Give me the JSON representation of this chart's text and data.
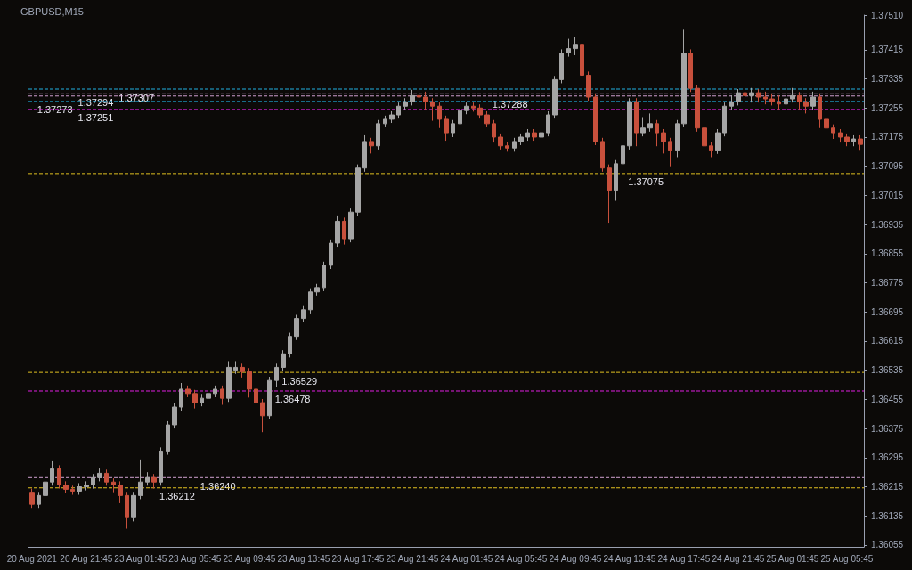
{
  "chart_data": {
    "type": "candlestick",
    "title": "GBPUSD,M15",
    "categories": [
      "20 Aug 2021",
      null,
      null,
      null,
      null,
      null,
      null,
      null,
      "20 Aug 21:45",
      null,
      null,
      null,
      null,
      null,
      null,
      null,
      "23 Aug 01:45",
      null,
      null,
      null,
      null,
      null,
      null,
      null,
      "23 Aug 05:45",
      null,
      null,
      null,
      null,
      null,
      null,
      null,
      "23 Aug 09:45",
      null,
      null,
      null,
      null,
      null,
      null,
      null,
      "23 Aug 13:45",
      null,
      null,
      null,
      null,
      null,
      null,
      null,
      "23 Aug 17:45",
      null,
      null,
      null,
      null,
      null,
      null,
      null,
      "23 Aug 21:45",
      null,
      null,
      null,
      null,
      null,
      null,
      null,
      "24 Aug 01:45",
      null,
      null,
      null,
      null,
      null,
      null,
      null,
      "24 Aug 05:45",
      null,
      null,
      null,
      null,
      null,
      null,
      null,
      "24 Aug 09:45",
      null,
      null,
      null,
      null,
      null,
      null,
      null,
      "24 Aug 13:45",
      null,
      null,
      null,
      null,
      null,
      null,
      null,
      "24 Aug 17:45",
      null,
      null,
      null,
      null,
      null,
      null,
      null,
      "24 Aug 21:45",
      null,
      null,
      null,
      null,
      null,
      null,
      null,
      "25 Aug 01:45",
      null,
      null,
      null,
      null,
      null,
      null,
      null,
      "25 Aug 05:45",
      null,
      null
    ],
    "colors": [
      "#c8503c",
      "#a5a5a5",
      "#a5a5a5",
      "#a5a5a5",
      "#c8503c",
      "#c8503c",
      "#c8503c",
      "#a5a5a5",
      "#a5a5a5",
      "#a5a5a5",
      "#a5a5a5",
      "#c8503c",
      "#c8503c",
      "#c8503c",
      "#c8503c",
      "#a5a5a5",
      "#a5a5a5",
      "#a5a5a5",
      "#c8503c",
      "#a5a5a5",
      "#a5a5a5",
      "#a5a5a5",
      "#a5a5a5",
      "#c8503c",
      "#c8503c",
      "#a5a5a5",
      "#a5a5a5",
      "#a5a5a5",
      "#c8503c",
      "#a5a5a5",
      "#a5a5a5",
      "#c8503c",
      "#c8503c",
      "#c8503c",
      "#c8503c",
      "#a5a5a5",
      "#a5a5a5",
      "#a5a5a5",
      "#a5a5a5",
      "#a5a5a5",
      "#a5a5a5",
      "#a5a5a5",
      "#a5a5a5",
      "#a5a5a5",
      "#a5a5a5",
      "#a5a5a5",
      "#c8503c",
      "#a5a5a5",
      "#a5a5a5",
      "#a5a5a5",
      "#c8503c",
      "#a5a5a5",
      "#a5a5a5",
      "#a5a5a5",
      "#a5a5a5",
      "#a5a5a5",
      "#a5a5a5",
      "#c8503c",
      "#c8503c",
      "#c8503c",
      "#c8503c",
      "#c8503c",
      "#a5a5a5",
      "#a5a5a5",
      "#a5a5a5",
      "#c8503c",
      "#c8503c",
      "#c8503c",
      "#c8503c",
      "#c8503c",
      "#c8503c",
      "#a5a5a5",
      "#a5a5a5",
      "#a5a5a5",
      "#c8503c",
      "#a5a5a5",
      "#a5a5a5",
      "#a5a5a5",
      "#a5a5a5",
      "#a5a5a5",
      "#a5a5a5",
      "#c8503c",
      "#c8503c",
      "#c8503c",
      "#c8503c",
      "#c8503c",
      "#a5a5a5",
      "#a5a5a5",
      "#a5a5a5",
      "#c8503c",
      "#a5a5a5",
      "#a5a5a5",
      "#c8503c",
      "#c8503c",
      "#c8503c",
      "#a5a5a5",
      "#a5a5a5",
      "#c8503c",
      "#c8503c",
      "#c8503c",
      "#c8503c",
      "#a5a5a5",
      "#a5a5a5",
      "#a5a5a5",
      "#a5a5a5",
      "#c8503c",
      "#a5a5a5",
      "#c8503c",
      "#c8503c",
      "#c8503c",
      "#c8503c",
      "#a5a5a5",
      "#a5a5a5",
      "#c8503c",
      "#c8503c",
      "#a5a5a5",
      "#c8503c",
      "#c8503c",
      "#c8503c",
      "#c8503c",
      "#c8503c",
      "#a5a5a5",
      "#c8503c"
    ],
    "ohlc": [
      [
        1.362,
        1.3621,
        1.36157,
        1.36167
      ],
      [
        1.36167,
        1.36201,
        1.36157,
        1.36191
      ],
      [
        1.36191,
        1.36238,
        1.36181,
        1.36228
      ],
      [
        1.36228,
        1.36285,
        1.36218,
        1.36264
      ],
      [
        1.36264,
        1.36274,
        1.3621,
        1.3622
      ],
      [
        1.3622,
        1.3623,
        1.36198,
        1.36208
      ],
      [
        1.36208,
        1.36218,
        1.36193,
        1.36203
      ],
      [
        1.36203,
        1.36225,
        1.36193,
        1.36215
      ],
      [
        1.36215,
        1.3623,
        1.36205,
        1.3622
      ],
      [
        1.3622,
        1.3625,
        1.3621,
        1.3624
      ],
      [
        1.3624,
        1.36265,
        1.3623,
        1.36252
      ],
      [
        1.36252,
        1.36262,
        1.36218,
        1.36228
      ],
      [
        1.36228,
        1.36238,
        1.362,
        1.3622
      ],
      [
        1.3622,
        1.3623,
        1.3617,
        1.36191
      ],
      [
        1.36191,
        1.36201,
        1.361,
        1.3613
      ],
      [
        1.3613,
        1.36201,
        1.3612,
        1.36191
      ],
      [
        1.36191,
        1.3629,
        1.36181,
        1.36228
      ],
      [
        1.36228,
        1.36255,
        1.36218,
        1.3624
      ],
      [
        1.3624,
        1.3625,
        1.3621,
        1.36228
      ],
      [
        1.36228,
        1.36323,
        1.36218,
        1.36313
      ],
      [
        1.36313,
        1.36395,
        1.36303,
        1.36385
      ],
      [
        1.36385,
        1.36444,
        1.36375,
        1.36434
      ],
      [
        1.36434,
        1.365,
        1.36424,
        1.36483
      ],
      [
        1.36483,
        1.36493,
        1.36461,
        1.36471
      ],
      [
        1.36471,
        1.36481,
        1.3643,
        1.36446
      ],
      [
        1.36446,
        1.3647,
        1.36436,
        1.36458
      ],
      [
        1.36458,
        1.36481,
        1.36448,
        1.36471
      ],
      [
        1.36471,
        1.36493,
        1.36461,
        1.36483
      ],
      [
        1.36483,
        1.36493,
        1.3644,
        1.36458
      ],
      [
        1.36458,
        1.3656,
        1.36448,
        1.36543
      ],
      [
        1.36535,
        1.3656,
        1.36525,
        1.36543
      ],
      [
        1.36543,
        1.36553,
        1.36515,
        1.36531
      ],
      [
        1.36531,
        1.36541,
        1.3646,
        1.36483
      ],
      [
        1.36483,
        1.36493,
        1.3641,
        1.36446
      ],
      [
        1.36446,
        1.36456,
        1.36365,
        1.3641
      ],
      [
        1.3641,
        1.36517,
        1.364,
        1.36507
      ],
      [
        1.36507,
        1.36553,
        1.3649,
        1.36543
      ],
      [
        1.36543,
        1.3659,
        1.36533,
        1.3658
      ],
      [
        1.3658,
        1.36638,
        1.3657,
        1.36628
      ],
      [
        1.36628,
        1.36687,
        1.36618,
        1.36677
      ],
      [
        1.36677,
        1.36711,
        1.36667,
        1.36701
      ],
      [
        1.36701,
        1.3676,
        1.36691,
        1.3675
      ],
      [
        1.3675,
        1.36772,
        1.3674,
        1.36762
      ],
      [
        1.36762,
        1.36833,
        1.36752,
        1.36823
      ],
      [
        1.36823,
        1.36894,
        1.36813,
        1.36884
      ],
      [
        1.36884,
        1.3696,
        1.36874,
        1.36944
      ],
      [
        1.36944,
        1.36954,
        1.3688,
        1.36896
      ],
      [
        1.36896,
        1.36979,
        1.36886,
        1.36969
      ],
      [
        1.36969,
        1.371,
        1.36959,
        1.3709
      ],
      [
        1.3709,
        1.3718,
        1.3708,
        1.37163
      ],
      [
        1.37163,
        1.37173,
        1.3713,
        1.37151
      ],
      [
        1.37151,
        1.37222,
        1.37141,
        1.37212
      ],
      [
        1.37212,
        1.37234,
        1.37202,
        1.37224
      ],
      [
        1.37224,
        1.37246,
        1.37214,
        1.37236
      ],
      [
        1.37236,
        1.3727,
        1.37226,
        1.3726
      ],
      [
        1.3726,
        1.37282,
        1.3725,
        1.37272
      ],
      [
        1.37272,
        1.37305,
        1.37262,
        1.37289
      ],
      [
        1.37289,
        1.37299,
        1.37265,
        1.37285
      ],
      [
        1.37285,
        1.373,
        1.3725,
        1.37272
      ],
      [
        1.37272,
        1.37282,
        1.3722,
        1.3726
      ],
      [
        1.3726,
        1.3727,
        1.372,
        1.37224
      ],
      [
        1.37224,
        1.37234,
        1.37165,
        1.37187
      ],
      [
        1.37187,
        1.37222,
        1.37175,
        1.37212
      ],
      [
        1.37212,
        1.37258,
        1.37202,
        1.37248
      ],
      [
        1.37248,
        1.3727,
        1.37238,
        1.3726
      ],
      [
        1.3726,
        1.3727,
        1.37245,
        1.37255
      ],
      [
        1.37255,
        1.37265,
        1.37226,
        1.37236
      ],
      [
        1.37236,
        1.37246,
        1.37202,
        1.37212
      ],
      [
        1.37212,
        1.37222,
        1.3716,
        1.37175
      ],
      [
        1.37175,
        1.37185,
        1.37141,
        1.37151
      ],
      [
        1.37151,
        1.37161,
        1.37135,
        1.37145
      ],
      [
        1.37145,
        1.37173,
        1.37135,
        1.37163
      ],
      [
        1.37163,
        1.37185,
        1.37153,
        1.37175
      ],
      [
        1.37175,
        1.37197,
        1.37165,
        1.37187
      ],
      [
        1.37187,
        1.37197,
        1.37165,
        1.37175
      ],
      [
        1.37175,
        1.37197,
        1.37165,
        1.37187
      ],
      [
        1.37187,
        1.37246,
        1.37177,
        1.37236
      ],
      [
        1.37236,
        1.37343,
        1.37226,
        1.37333
      ],
      [
        1.37333,
        1.37416,
        1.37323,
        1.37406
      ],
      [
        1.37406,
        1.37445,
        1.37396,
        1.37418
      ],
      [
        1.37418,
        1.3745,
        1.374,
        1.3743
      ],
      [
        1.3743,
        1.3744,
        1.37335,
        1.37345
      ],
      [
        1.37345,
        1.37355,
        1.37275,
        1.37285
      ],
      [
        1.37285,
        1.37295,
        1.37153,
        1.37163
      ],
      [
        1.37163,
        1.37173,
        1.3708,
        1.3709
      ],
      [
        1.3709,
        1.371,
        1.3694,
        1.37029
      ],
      [
        1.37029,
        1.37112,
        1.37,
        1.37102
      ],
      [
        1.37102,
        1.37161,
        1.3706,
        1.37151
      ],
      [
        1.37151,
        1.37282,
        1.37141,
        1.37272
      ],
      [
        1.37272,
        1.37282,
        1.3715,
        1.37187
      ],
      [
        1.37187,
        1.3723,
        1.37177,
        1.372
      ],
      [
        1.372,
        1.3724,
        1.3719,
        1.37212
      ],
      [
        1.37212,
        1.37222,
        1.3715,
        1.37187
      ],
      [
        1.37187,
        1.37197,
        1.3713,
        1.37163
      ],
      [
        1.37163,
        1.37173,
        1.37095,
        1.37139
      ],
      [
        1.37139,
        1.37222,
        1.3712,
        1.37212
      ],
      [
        1.37212,
        1.3747,
        1.37202,
        1.37406
      ],
      [
        1.37406,
        1.37416,
        1.37299,
        1.37309
      ],
      [
        1.37309,
        1.37319,
        1.3719,
        1.372
      ],
      [
        1.372,
        1.3721,
        1.37141,
        1.37151
      ],
      [
        1.37151,
        1.37161,
        1.3712,
        1.37139
      ],
      [
        1.37139,
        1.37197,
        1.37129,
        1.37187
      ],
      [
        1.37187,
        1.3727,
        1.37177,
        1.3726
      ],
      [
        1.3726,
        1.3729,
        1.3725,
        1.37272
      ],
      [
        1.37272,
        1.37307,
        1.37262,
        1.37297
      ],
      [
        1.37297,
        1.3731,
        1.37279,
        1.37289
      ],
      [
        1.37289,
        1.3731,
        1.3727,
        1.37297
      ],
      [
        1.37297,
        1.37307,
        1.3727,
        1.37285
      ],
      [
        1.37285,
        1.373,
        1.37265,
        1.3728
      ],
      [
        1.3728,
        1.37295,
        1.37262,
        1.37272
      ],
      [
        1.37272,
        1.3729,
        1.3725,
        1.37266
      ],
      [
        1.37266,
        1.373,
        1.37256,
        1.3728
      ],
      [
        1.3728,
        1.3731,
        1.3727,
        1.37289
      ],
      [
        1.37289,
        1.37299,
        1.3725,
        1.37272
      ],
      [
        1.37272,
        1.37282,
        1.3724,
        1.3726
      ],
      [
        1.3726,
        1.373,
        1.3725,
        1.37285
      ],
      [
        1.37285,
        1.37295,
        1.372,
        1.37224
      ],
      [
        1.37224,
        1.37234,
        1.3718,
        1.372
      ],
      [
        1.372,
        1.3721,
        1.3717,
        1.37187
      ],
      [
        1.37187,
        1.37197,
        1.3716,
        1.37175
      ],
      [
        1.37175,
        1.37185,
        1.3715,
        1.37163
      ],
      [
        1.37163,
        1.3718,
        1.3715,
        1.3717
      ],
      [
        1.3717,
        1.3718,
        1.3714,
        1.37155
      ]
    ],
    "ylim": [
      1.3605,
      1.3751
    ],
    "yticks": [
      1.36055,
      1.36135,
      1.36215,
      1.36295,
      1.36375,
      1.36455,
      1.36535,
      1.36615,
      1.36695,
      1.36775,
      1.36855,
      1.36935,
      1.37015,
      1.37095,
      1.37175,
      1.37255,
      1.37335,
      1.37415,
      {
        "value": 1.3751,
        "label": "1.37510"
      }
    ],
    "ref_lines": [
      {
        "axis": "y",
        "value": 1.36212,
        "label": "1.36212",
        "color": "#e0c020",
        "line_style": "dashed"
      },
      {
        "axis": "y",
        "value": 1.3624,
        "label": "1.36240",
        "color": "#d0a0d0",
        "line_style": "dashed"
      },
      {
        "axis": "y",
        "value": 1.36478,
        "label": "1.36478",
        "color": "#e020e0",
        "line_style": "dashed"
      },
      {
        "axis": "y",
        "value": 1.36529,
        "label": "1.36529",
        "color": "#e0c020",
        "line_style": "dashed"
      },
      {
        "axis": "y",
        "value": 1.37288,
        "label": "1.37288",
        "color": "#d0a0d0",
        "line_style": "dashed"
      },
      {
        "axis": "y",
        "value": 1.37273,
        "label": "1.37273",
        "color": "#20b0e0",
        "line_style": "dashed"
      },
      {
        "axis": "y",
        "value": 1.37251,
        "label": "1.37251",
        "color": "#e020e0",
        "line_style": "dashed"
      },
      {
        "axis": "y",
        "value": 1.37075,
        "label": "1.37075",
        "color": "#e0c020",
        "line_style": "dashed"
      },
      {
        "axis": "y",
        "value": 1.37294,
        "label": "1.37294",
        "color": "#d0a0d0",
        "line_style": "dashed"
      },
      {
        "axis": "y",
        "value": 1.37307,
        "label": "1.37307",
        "color": "#20b0e0",
        "line_style": "dashed"
      }
    ],
    "grid": false
  }
}
